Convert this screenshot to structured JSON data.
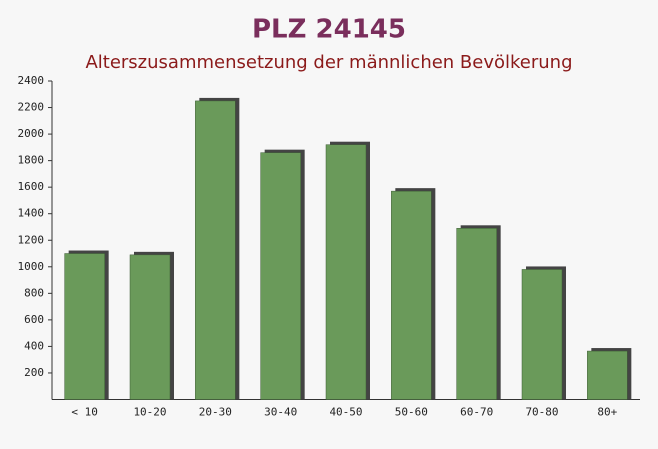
{
  "chart_data": {
    "type": "bar",
    "title": "PLZ 24145",
    "subtitle": "Alterszusammensetzung der männlichen Bevölkerung",
    "categories": [
      "< 10",
      "10-20",
      "20-30",
      "30-40",
      "40-50",
      "50-60",
      "60-70",
      "70-80",
      "80+"
    ],
    "values": [
      1100,
      1090,
      2250,
      1860,
      1920,
      1570,
      1290,
      980,
      365
    ],
    "color": "#6a9a5a",
    "ylim": [
      0,
      2400
    ],
    "yticks": [
      200,
      400,
      600,
      800,
      1000,
      1200,
      1400,
      1600,
      1800,
      2000,
      2200,
      2400
    ]
  }
}
